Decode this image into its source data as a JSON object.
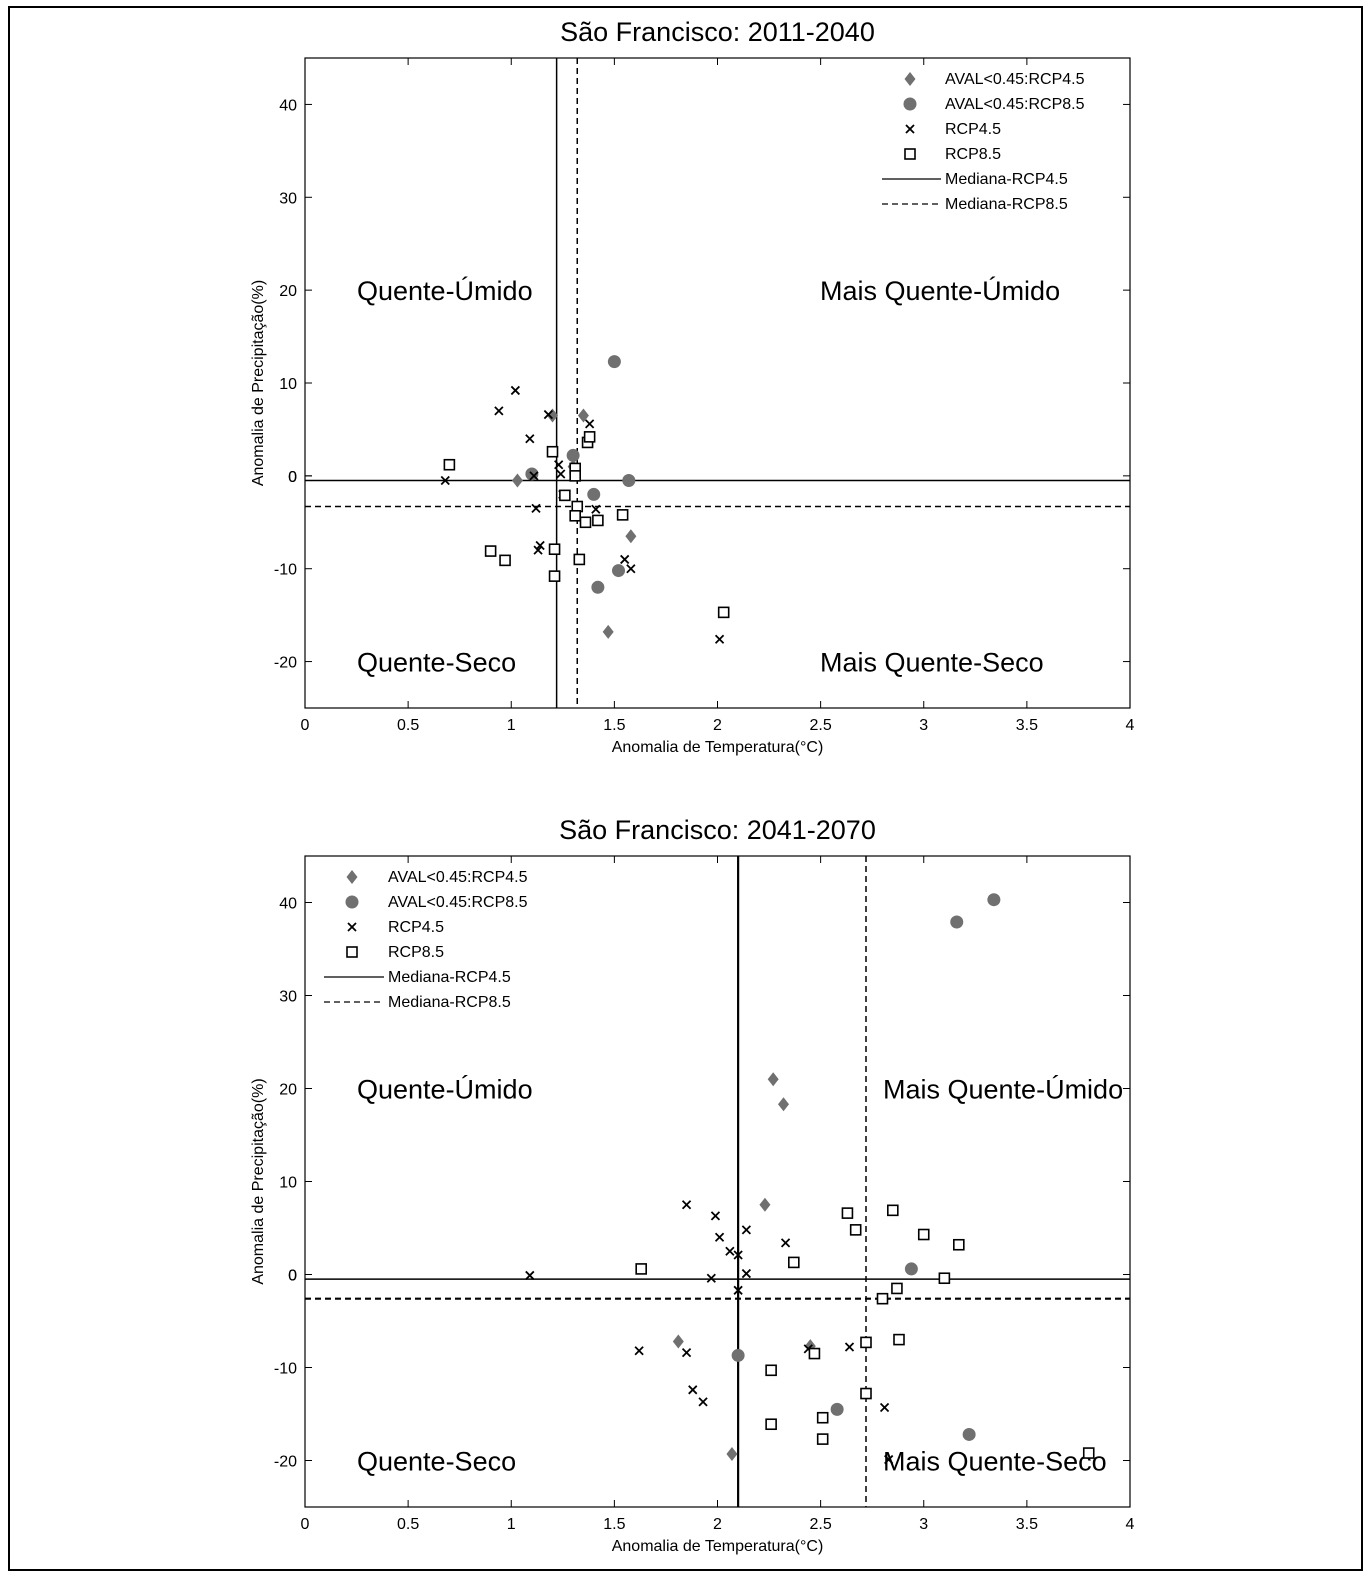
{
  "chart_data": [
    {
      "type": "scatter",
      "title": "São Francisco: 2011-2040",
      "xlabel": "Anomalia de Temperatura(°C)",
      "ylabel": "Anomalia de Precipitação(%)",
      "xlim": [
        0,
        4
      ],
      "ylim": [
        -25,
        45
      ],
      "xticks": [
        "0",
        "0.5",
        "1",
        "1.5",
        "2",
        "2.5",
        "3",
        "3.5",
        "4"
      ],
      "yticks": [
        "-20",
        "-10",
        "0",
        "10",
        "20",
        "30",
        "40"
      ],
      "grid": false,
      "legend_position": "top-right",
      "quadrant_labels": {
        "top_left": "Quente-Úmido",
        "top_right": "Mais Quente-Úmido",
        "bottom_left": "Quente-Seco",
        "bottom_right": "Mais Quente-Seco"
      },
      "legend": [
        "AVAL<0.45:RCP4.5",
        "AVAL<0.45:RCP8.5",
        "RCP4.5",
        "RCP8.5",
        "Mediana-RCP4.5",
        "Mediana-RCP8.5"
      ],
      "median_rcp45": {
        "x": 1.22,
        "y": -0.5
      },
      "median_rcp85": {
        "x": 1.32,
        "y": -3.3
      },
      "series": [
        {
          "name": "AVAL<0.45:RCP4.5",
          "marker": "diamond",
          "points": [
            [
              1.2,
              6.5
            ],
            [
              1.35,
              6.5
            ],
            [
              1.03,
              -0.5
            ],
            [
              1.58,
              -6.5
            ],
            [
              1.47,
              -16.8
            ],
            [
              1.3,
              1.0
            ]
          ]
        },
        {
          "name": "AVAL<0.45:RCP8.5",
          "marker": "circle",
          "points": [
            [
              1.5,
              12.3
            ],
            [
              1.1,
              0.2
            ],
            [
              1.3,
              2.2
            ],
            [
              1.57,
              -0.5
            ],
            [
              1.4,
              -2.0
            ],
            [
              1.52,
              -10.2
            ],
            [
              1.42,
              -12.0
            ]
          ]
        },
        {
          "name": "RCP4.5",
          "marker": "x",
          "points": [
            [
              1.02,
              9.2
            ],
            [
              0.94,
              7.0
            ],
            [
              1.18,
              6.6
            ],
            [
              1.38,
              5.6
            ],
            [
              1.09,
              4.0
            ],
            [
              1.23,
              1.2
            ],
            [
              1.24,
              0.2
            ],
            [
              1.11,
              0.0
            ],
            [
              0.68,
              -0.5
            ],
            [
              1.25,
              -2.0
            ],
            [
              1.12,
              -3.5
            ],
            [
              1.41,
              -3.6
            ],
            [
              1.14,
              -7.5
            ],
            [
              1.13,
              -8.0
            ],
            [
              1.55,
              -9.0
            ],
            [
              1.58,
              -10.0
            ],
            [
              2.01,
              -17.6
            ]
          ]
        },
        {
          "name": "RCP8.5",
          "marker": "square",
          "points": [
            [
              0.7,
              1.2
            ],
            [
              1.2,
              2.6
            ],
            [
              1.31,
              0.8
            ],
            [
              1.31,
              0.0
            ],
            [
              1.37,
              3.6
            ],
            [
              1.38,
              4.2
            ],
            [
              1.26,
              -2.1
            ],
            [
              1.32,
              -3.3
            ],
            [
              1.31,
              -4.3
            ],
            [
              1.36,
              -5.0
            ],
            [
              1.42,
              -4.8
            ],
            [
              1.54,
              -4.2
            ],
            [
              0.9,
              -8.1
            ],
            [
              0.97,
              -9.1
            ],
            [
              1.21,
              -7.9
            ],
            [
              1.21,
              -10.8
            ],
            [
              1.33,
              -9.0
            ],
            [
              2.03,
              -14.7
            ]
          ]
        }
      ]
    },
    {
      "type": "scatter",
      "title": "São Francisco: 2041-2070",
      "xlabel": "Anomalia de Temperatura(°C)",
      "ylabel": "Anomalia de Precipitação(%)",
      "xlim": [
        0,
        4
      ],
      "ylim": [
        -25,
        45
      ],
      "xticks": [
        "0",
        "0.5",
        "1",
        "1.5",
        "2",
        "2.5",
        "3",
        "3.5",
        "4"
      ],
      "yticks": [
        "-20",
        "-10",
        "0",
        "10",
        "20",
        "30",
        "40"
      ],
      "grid": false,
      "legend_position": "top-left",
      "quadrant_labels": {
        "top_left": "Quente-Úmido",
        "top_right": "Mais Quente-Úmido",
        "bottom_left": "Quente-Seco",
        "bottom_right": "Mais Quente-Seco"
      },
      "legend": [
        "AVAL<0.45:RCP4.5",
        "AVAL<0.45:RCP8.5",
        "RCP4.5",
        "RCP8.5",
        "Mediana-RCP4.5",
        "Mediana-RCP8.5"
      ],
      "median_rcp45": {
        "x": 2.1,
        "y": -0.5
      },
      "median_rcp85": {
        "x": 2.72,
        "y": -2.6
      },
      "series": [
        {
          "name": "AVAL<0.45:RCP4.5",
          "marker": "diamond",
          "points": [
            [
              2.27,
              21.0
            ],
            [
              2.32,
              18.3
            ],
            [
              2.23,
              7.5
            ],
            [
              1.81,
              -7.2
            ],
            [
              2.45,
              -7.7
            ],
            [
              2.07,
              -19.3
            ]
          ]
        },
        {
          "name": "AVAL<0.45:RCP8.5",
          "marker": "circle",
          "points": [
            [
              3.34,
              40.3
            ],
            [
              3.16,
              37.9
            ],
            [
              2.94,
              0.6
            ],
            [
              2.1,
              -8.7
            ],
            [
              2.58,
              -14.5
            ],
            [
              3.22,
              -17.2
            ]
          ]
        },
        {
          "name": "RCP4.5",
          "marker": "x",
          "points": [
            [
              1.85,
              7.5
            ],
            [
              1.99,
              6.3
            ],
            [
              2.01,
              4.0
            ],
            [
              2.14,
              4.8
            ],
            [
              2.33,
              3.4
            ],
            [
              2.06,
              2.5
            ],
            [
              2.1,
              2.1
            ],
            [
              2.14,
              0.1
            ],
            [
              1.97,
              -0.4
            ],
            [
              2.1,
              -1.7
            ],
            [
              1.09,
              -0.1
            ],
            [
              1.62,
              -8.2
            ],
            [
              1.85,
              -8.4
            ],
            [
              2.64,
              -7.8
            ],
            [
              2.44,
              -8.0
            ],
            [
              1.88,
              -12.4
            ],
            [
              1.93,
              -13.7
            ],
            [
              2.81,
              -14.3
            ],
            [
              2.83,
              -19.9
            ]
          ]
        },
        {
          "name": "RCP8.5",
          "marker": "square",
          "points": [
            [
              1.63,
              0.6
            ],
            [
              2.37,
              1.3
            ],
            [
              2.63,
              6.6
            ],
            [
              2.67,
              4.8
            ],
            [
              2.85,
              6.9
            ],
            [
              3.0,
              4.3
            ],
            [
              3.17,
              3.2
            ],
            [
              3.1,
              -0.4
            ],
            [
              2.8,
              -2.6
            ],
            [
              2.87,
              -1.5
            ],
            [
              2.72,
              -7.3
            ],
            [
              2.88,
              -7.0
            ],
            [
              2.26,
              -10.3
            ],
            [
              2.47,
              -8.5
            ],
            [
              2.72,
              -12.8
            ],
            [
              2.51,
              -15.4
            ],
            [
              2.26,
              -16.1
            ],
            [
              2.51,
              -17.7
            ],
            [
              3.8,
              -19.2
            ]
          ]
        }
      ]
    }
  ]
}
